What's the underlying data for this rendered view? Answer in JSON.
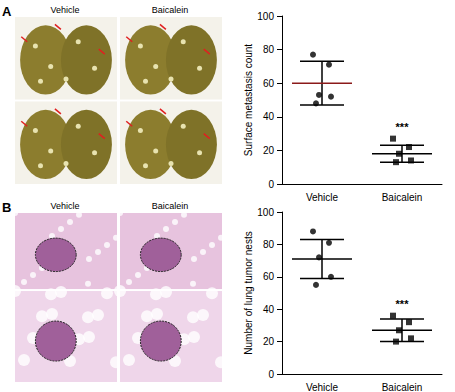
{
  "chart_data": [
    {
      "type": "scatter",
      "panel": "A",
      "image_labels": [
        "Vehicle",
        "Baicalein"
      ],
      "ylabel": "Surface metastasis count",
      "categories": [
        "Vehicle",
        "Baicalein"
      ],
      "groups": [
        {
          "category": "Vehicle",
          "values": [
            77,
            71,
            53,
            52,
            48
          ],
          "mean": 60,
          "sd": 13,
          "marker": "circle",
          "color": "#000000",
          "mean_color": "#8b1a1a"
        },
        {
          "category": "Baicalein",
          "values": [
            27,
            22,
            18,
            14,
            13
          ],
          "mean": 18,
          "sd": 5,
          "marker": "square",
          "color": "#000000",
          "mean_color": "#000000"
        }
      ],
      "annotations": [
        {
          "category": "Baicalein",
          "text": "***"
        }
      ],
      "ylim": [
        0,
        100
      ],
      "yticks": [
        0,
        20,
        40,
        60,
        80,
        100
      ],
      "grid": false
    },
    {
      "type": "scatter",
      "panel": "B",
      "image_labels": [
        "Vehicle",
        "Baicalein"
      ],
      "ylabel": "Number of lung tumor nests",
      "categories": [
        "Vehicle",
        "Baicalein"
      ],
      "groups": [
        {
          "category": "Vehicle",
          "values": [
            88,
            81,
            72,
            60,
            55
          ],
          "mean": 71,
          "sd": 12,
          "marker": "circle",
          "color": "#000000",
          "mean_color": "#000000"
        },
        {
          "category": "Baicalein",
          "values": [
            36,
            32,
            27,
            22,
            20
          ],
          "mean": 27,
          "sd": 7,
          "marker": "square",
          "color": "#000000",
          "mean_color": "#000000"
        }
      ],
      "annotations": [
        {
          "category": "Baicalein",
          "text": "***"
        }
      ],
      "ylim": [
        0,
        100
      ],
      "yticks": [
        0,
        20,
        40,
        60,
        80,
        100
      ],
      "grid": false
    }
  ]
}
